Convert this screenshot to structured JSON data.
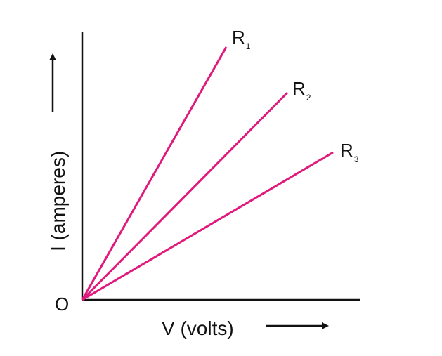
{
  "diagram": {
    "origin_label": "O",
    "x_axis_label": "V (volts)",
    "y_axis_label": "I (amperes)",
    "line_color": "#e0197d",
    "axis_color": "#111111",
    "lines": [
      {
        "label": "R",
        "subscript": "1"
      },
      {
        "label": "R",
        "subscript": "2"
      },
      {
        "label": "R",
        "subscript": "3"
      }
    ]
  }
}
